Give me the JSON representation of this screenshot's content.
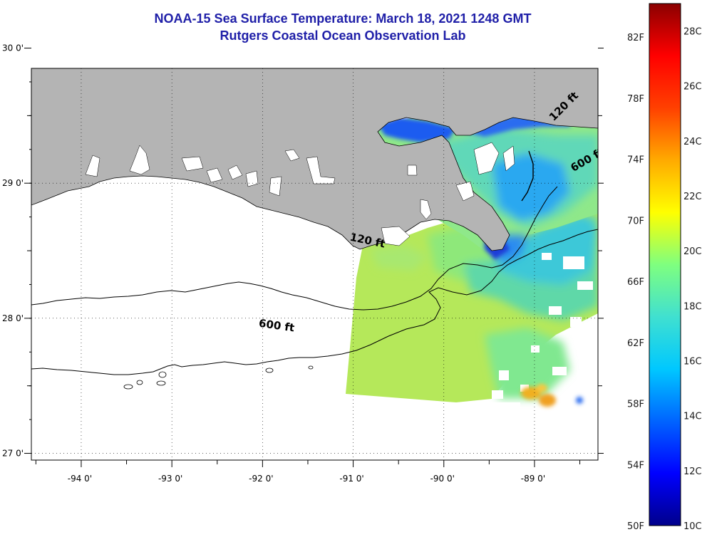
{
  "header": {
    "title": "NOAA-15 Sea Surface Temperature:  March 18, 2021 1248 GMT",
    "subtitle": "Rutgers Coastal Ocean Observation Lab"
  },
  "map": {
    "lon_range": [
      -94.55,
      -88.3
    ],
    "lat_range": [
      26.95,
      29.85
    ],
    "lon_ticks": [
      {
        "value": -94,
        "label": "-94 0'"
      },
      {
        "value": -93,
        "label": "-93 0'"
      },
      {
        "value": -92,
        "label": "-92 0'"
      },
      {
        "value": -91,
        "label": "-91 0'"
      },
      {
        "value": -90,
        "label": "-90 0'"
      },
      {
        "value": -89,
        "label": "-89 0'"
      }
    ],
    "lat_ticks": [
      {
        "value": 30,
        "label": "30 0'"
      },
      {
        "value": 29,
        "label": "29 0'"
      },
      {
        "value": 28,
        "label": "28 0'"
      },
      {
        "value": 27,
        "label": "27 0'"
      }
    ],
    "grid": "dotted",
    "contour_labels": [
      {
        "text": "120 ft",
        "lon": -90.85,
        "lat": 28.55,
        "rotate": 12
      },
      {
        "text": "600 ft",
        "lon": -91.85,
        "lat": 27.92,
        "rotate": 8
      },
      {
        "text": "120 ft",
        "lon": -88.65,
        "lat": 29.55,
        "rotate": -45
      },
      {
        "text": "600 ft",
        "lon": -88.4,
        "lat": 29.15,
        "rotate": -30
      }
    ],
    "land_color": "#b4b4b4"
  },
  "colorbar": {
    "min_c": 10,
    "max_c": 29,
    "fahrenheit_labels": [
      "82F",
      "78F",
      "74F",
      "70F",
      "66F",
      "62F",
      "58F",
      "54F",
      "50F"
    ],
    "fahrenheit_values": [
      82,
      78,
      74,
      70,
      66,
      62,
      58,
      54,
      50
    ],
    "celsius_labels": [
      "28C",
      "26C",
      "24C",
      "22C",
      "20C",
      "18C",
      "16C",
      "14C",
      "12C",
      "10C"
    ],
    "celsius_values": [
      28,
      26,
      24,
      22,
      20,
      18,
      16,
      14,
      12,
      10
    ],
    "colors": [
      "#00008b",
      "#0000ff",
      "#0064ff",
      "#00c8ff",
      "#40e0d0",
      "#7fff7f",
      "#ffff00",
      "#ffaa00",
      "#ff4000",
      "#ff0000",
      "#8b0000"
    ]
  }
}
